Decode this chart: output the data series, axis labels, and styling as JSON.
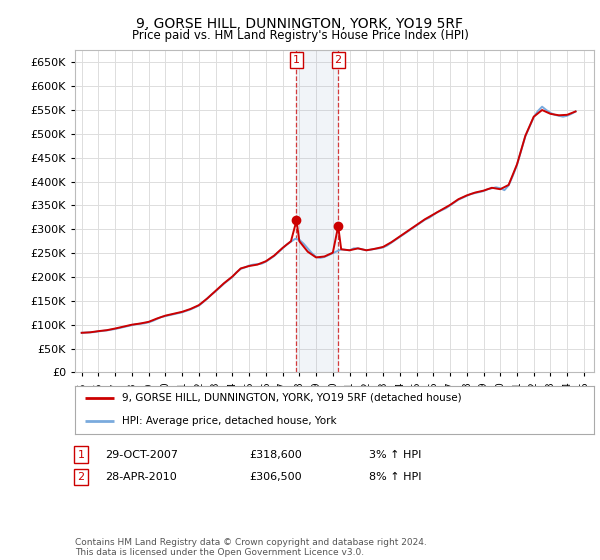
{
  "title": "9, GORSE HILL, DUNNINGTON, YORK, YO19 5RF",
  "subtitle": "Price paid vs. HM Land Registry's House Price Index (HPI)",
  "ylim": [
    0,
    675000
  ],
  "yticks": [
    0,
    50000,
    100000,
    150000,
    200000,
    250000,
    300000,
    350000,
    400000,
    450000,
    500000,
    550000,
    600000,
    650000
  ],
  "xlim_start": 1994.6,
  "xlim_end": 2025.6,
  "background_color": "#ffffff",
  "grid_color": "#dddddd",
  "sale1_date": 2007.83,
  "sale1_price": 318600,
  "sale2_date": 2010.32,
  "sale2_price": 306500,
  "sale1_label": "1",
  "sale2_label": "2",
  "house_color": "#cc0000",
  "hpi_color": "#7aaadd",
  "legend_house": "9, GORSE HILL, DUNNINGTON, YORK, YO19 5RF (detached house)",
  "legend_hpi": "HPI: Average price, detached house, York",
  "table_row1": [
    "1",
    "29-OCT-2007",
    "£318,600",
    "3% ↑ HPI"
  ],
  "table_row2": [
    "2",
    "28-APR-2010",
    "£306,500",
    "8% ↑ HPI"
  ],
  "footer": "Contains HM Land Registry data © Crown copyright and database right 2024.\nThis data is licensed under the Open Government Licence v3.0.",
  "hpi_data": {
    "years": [
      1995.0,
      1995.25,
      1995.5,
      1995.75,
      1996.0,
      1996.25,
      1996.5,
      1996.75,
      1997.0,
      1997.25,
      1997.5,
      1997.75,
      1998.0,
      1998.25,
      1998.5,
      1998.75,
      1999.0,
      1999.25,
      1999.5,
      1999.75,
      2000.0,
      2000.25,
      2000.5,
      2000.75,
      2001.0,
      2001.25,
      2001.5,
      2001.75,
      2002.0,
      2002.25,
      2002.5,
      2002.75,
      2003.0,
      2003.25,
      2003.5,
      2003.75,
      2004.0,
      2004.25,
      2004.5,
      2004.75,
      2005.0,
      2005.25,
      2005.5,
      2005.75,
      2006.0,
      2006.25,
      2006.5,
      2006.75,
      2007.0,
      2007.25,
      2007.5,
      2007.75,
      2008.0,
      2008.25,
      2008.5,
      2008.75,
      2009.0,
      2009.25,
      2009.5,
      2009.75,
      2010.0,
      2010.25,
      2010.5,
      2010.75,
      2011.0,
      2011.25,
      2011.5,
      2011.75,
      2012.0,
      2012.25,
      2012.5,
      2012.75,
      2013.0,
      2013.25,
      2013.5,
      2013.75,
      2014.0,
      2014.25,
      2014.5,
      2014.75,
      2015.0,
      2015.25,
      2015.5,
      2015.75,
      2016.0,
      2016.25,
      2016.5,
      2016.75,
      2017.0,
      2017.25,
      2017.5,
      2017.75,
      2018.0,
      2018.25,
      2018.5,
      2018.75,
      2019.0,
      2019.25,
      2019.5,
      2019.75,
      2020.0,
      2020.25,
      2020.5,
      2020.75,
      2021.0,
      2021.25,
      2021.5,
      2021.75,
      2022.0,
      2022.25,
      2022.5,
      2022.75,
      2023.0,
      2023.25,
      2023.5,
      2023.75,
      2024.0,
      2024.25,
      2024.5
    ],
    "values": [
      83000,
      83500,
      84000,
      84500,
      86000,
      87000,
      88000,
      89500,
      91000,
      93000,
      95000,
      97000,
      99000,
      101000,
      102000,
      103000,
      105000,
      108000,
      112000,
      116000,
      118000,
      120000,
      122000,
      124000,
      126000,
      129000,
      132000,
      136000,
      140000,
      147000,
      155000,
      163000,
      170000,
      178000,
      186000,
      193000,
      200000,
      210000,
      217000,
      220000,
      224000,
      226000,
      227000,
      228000,
      232000,
      238000,
      244000,
      252000,
      260000,
      268000,
      274000,
      280000,
      278000,
      270000,
      260000,
      250000,
      242000,
      240000,
      242000,
      246000,
      250000,
      254000,
      258000,
      257000,
      256000,
      260000,
      260000,
      258000,
      256000,
      257000,
      259000,
      260000,
      262000,
      266000,
      272000,
      278000,
      284000,
      290000,
      296000,
      302000,
      308000,
      314000,
      320000,
      324000,
      330000,
      336000,
      340000,
      344000,
      350000,
      356000,
      362000,
      366000,
      370000,
      374000,
      376000,
      378000,
      380000,
      384000,
      386000,
      388000,
      386000,
      382000,
      392000,
      412000,
      435000,
      465000,
      495000,
      515000,
      535000,
      548000,
      557000,
      550000,
      544000,
      540000,
      538000,
      536000,
      538000,
      542000,
      547000
    ]
  },
  "house_data": {
    "years": [
      1995.0,
      1995.5,
      1996.0,
      1996.5,
      1997.0,
      1997.5,
      1998.0,
      1998.5,
      1999.0,
      1999.5,
      2000.0,
      2000.5,
      2001.0,
      2001.5,
      2002.0,
      2002.5,
      2003.0,
      2003.5,
      2004.0,
      2004.5,
      2005.0,
      2005.5,
      2006.0,
      2006.5,
      2007.0,
      2007.5,
      2007.83,
      2008.0,
      2008.5,
      2009.0,
      2009.5,
      2010.0,
      2010.32,
      2010.5,
      2011.0,
      2011.5,
      2012.0,
      2012.5,
      2013.0,
      2013.5,
      2014.0,
      2014.5,
      2015.0,
      2015.5,
      2016.0,
      2016.5,
      2017.0,
      2017.5,
      2018.0,
      2018.5,
      2019.0,
      2019.5,
      2020.0,
      2020.5,
      2021.0,
      2021.5,
      2022.0,
      2022.5,
      2023.0,
      2023.5,
      2024.0,
      2024.5
    ],
    "values": [
      83000,
      84000,
      86500,
      88500,
      92000,
      96000,
      100000,
      102500,
      106000,
      113000,
      119000,
      123000,
      127000,
      133000,
      141000,
      155000,
      171000,
      187000,
      201000,
      218000,
      223000,
      226000,
      233000,
      245000,
      261000,
      275000,
      318600,
      275000,
      253000,
      241000,
      243000,
      251000,
      306500,
      258000,
      256000,
      260000,
      256000,
      259000,
      263000,
      273000,
      285000,
      297000,
      309000,
      321000,
      331000,
      341000,
      351000,
      363000,
      371000,
      377000,
      381000,
      387000,
      384000,
      393000,
      436000,
      496000,
      536000,
      550000,
      542000,
      539000,
      540000,
      547000
    ]
  }
}
